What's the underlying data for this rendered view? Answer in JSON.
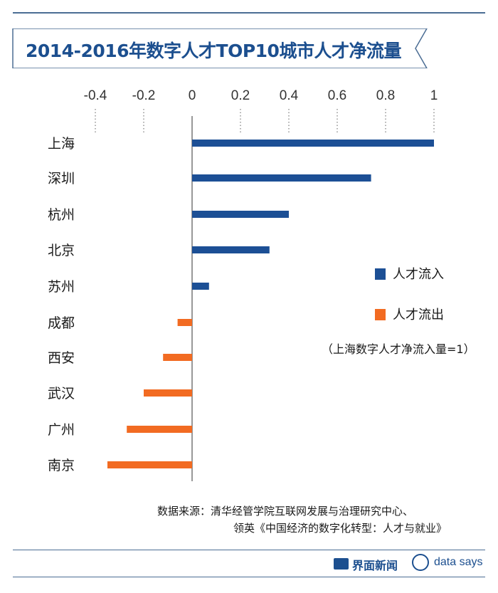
{
  "header": {
    "title": "2014-2016年数字人才TOP10城市人才净流量"
  },
  "chart_data": {
    "type": "bar",
    "orientation": "horizontal",
    "title": "2014-2016年数字人才TOP10城市人才净流量",
    "categories": [
      "上海",
      "深圳",
      "杭州",
      "北京",
      "苏州",
      "成都",
      "西安",
      "武汉",
      "广州",
      "南京"
    ],
    "values": [
      1.0,
      0.74,
      0.4,
      0.32,
      0.07,
      -0.06,
      -0.12,
      -0.2,
      -0.27,
      -0.35
    ],
    "xlim": [
      -0.4,
      1.0
    ],
    "xticks": [
      "-0.4",
      "-0.2",
      "0",
      "0.2",
      "0.4",
      "0.6",
      "0.8",
      "1"
    ],
    "xtick_values": [
      -0.4,
      -0.2,
      0,
      0.2,
      0.4,
      0.6,
      0.8,
      1.0
    ],
    "legend": [
      {
        "label": "人才流入",
        "color": "#1c4f95"
      },
      {
        "label": "人才流出",
        "color": "#f26b22"
      }
    ],
    "legend_position": "right",
    "note": "（上海数字人才净流入量=1）"
  },
  "colors": {
    "inflow": "#1c4f95",
    "outflow": "#f26b22",
    "accent": "#1c4f8f"
  },
  "source": {
    "line1": "数据来源：清华经管学院互联网发展与治理研究中心、",
    "line2": "领英《中国经济的数字化转型：人才与就业》"
  },
  "footer": {
    "brand_jiemian": "界面新闻",
    "brand_datasays": "data says"
  }
}
